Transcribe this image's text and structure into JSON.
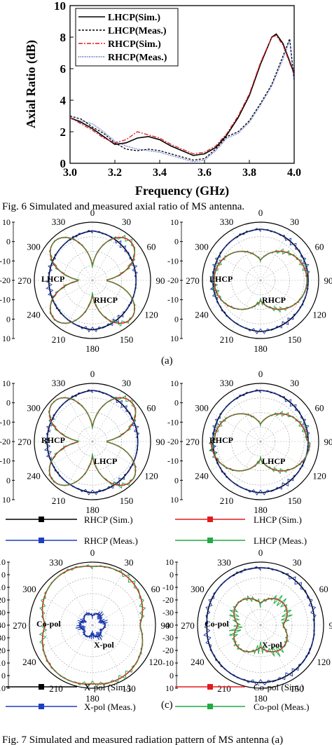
{
  "chart_data": [
    {
      "type": "line",
      "xlabel": "Frequency (GHz)",
      "ylabel": "Axial Ratio (dB)",
      "xlim": [
        3.0,
        4.0
      ],
      "ylim": [
        0,
        10
      ],
      "xticks": [
        "3.0",
        "3.2",
        "3.4",
        "3.6",
        "3.8",
        "4.0"
      ],
      "yticks": [
        "0",
        "2",
        "4",
        "6",
        "8",
        "10"
      ],
      "legend_position": "top-left",
      "series": [
        {
          "name": "LHCP(Sim.)",
          "color": "#000000",
          "dash": "solid",
          "x": [
            3.0,
            3.05,
            3.1,
            3.15,
            3.2,
            3.25,
            3.3,
            3.35,
            3.4,
            3.45,
            3.5,
            3.55,
            3.6,
            3.65,
            3.7,
            3.75,
            3.8,
            3.85,
            3.9,
            3.92,
            3.95,
            4.0
          ],
          "y": [
            2.9,
            2.6,
            2.2,
            1.7,
            1.2,
            1.3,
            1.6,
            1.7,
            1.5,
            1.1,
            0.8,
            0.5,
            0.6,
            1.0,
            1.8,
            2.9,
            4.3,
            6.3,
            8.0,
            8.2,
            7.6,
            5.7
          ]
        },
        {
          "name": "LHCP(Meas.)",
          "color": "#000000",
          "dash": "3,2",
          "x": [
            3.0,
            3.05,
            3.1,
            3.15,
            3.2,
            3.25,
            3.3,
            3.35,
            3.4,
            3.45,
            3.5,
            3.55,
            3.6,
            3.65,
            3.7,
            3.75,
            3.8,
            3.85,
            3.9,
            3.95,
            3.98,
            4.0
          ],
          "y": [
            3.0,
            2.8,
            2.3,
            1.9,
            1.3,
            0.9,
            0.8,
            0.9,
            0.8,
            0.6,
            0.4,
            0.2,
            0.3,
            0.9,
            1.7,
            2.0,
            2.7,
            3.8,
            5.0,
            6.8,
            7.9,
            5.3
          ]
        },
        {
          "name": "RHCP(Sim.)",
          "color": "#e31a1c",
          "dash": "6,2,2,2",
          "x": [
            3.0,
            3.05,
            3.1,
            3.15,
            3.2,
            3.25,
            3.3,
            3.35,
            3.4,
            3.45,
            3.5,
            3.55,
            3.6,
            3.65,
            3.7,
            3.75,
            3.8,
            3.85,
            3.9,
            3.92,
            3.95,
            4.0
          ],
          "y": [
            2.9,
            2.5,
            2.1,
            1.6,
            1.3,
            1.5,
            2.0,
            1.8,
            1.6,
            1.2,
            0.9,
            0.6,
            0.7,
            1.1,
            1.9,
            3.0,
            4.4,
            6.4,
            8.0,
            8.1,
            7.5,
            5.6
          ]
        },
        {
          "name": "RHCP(Meas.)",
          "color": "#1f3fbf",
          "dash": "1,1.5",
          "x": [
            3.0,
            3.05,
            3.1,
            3.15,
            3.2,
            3.25,
            3.3,
            3.35,
            3.4,
            3.45,
            3.5,
            3.55,
            3.6,
            3.65,
            3.7,
            3.75,
            3.8,
            3.85,
            3.9,
            3.95,
            3.98,
            4.0
          ],
          "y": [
            2.8,
            2.7,
            2.5,
            2.0,
            1.4,
            1.1,
            0.9,
            0.8,
            0.7,
            0.5,
            0.3,
            0.1,
            0.2,
            0.8,
            1.6,
            1.9,
            2.6,
            3.7,
            4.9,
            6.6,
            7.8,
            5.1
          ]
        }
      ],
      "legend": [
        "LHCP(Sim.)",
        "LHCP(Meas.)",
        "RHCP(Sim.)",
        "RHCP(Meas.)"
      ]
    },
    {
      "type": "polar",
      "radial_ticks": [
        "10",
        "0",
        "-10",
        "-20"
      ],
      "angle_ticks": [
        "0",
        "30",
        "60",
        "90",
        "120",
        "150",
        "180",
        "210",
        "240",
        "270",
        "300",
        "330"
      ],
      "r_range": [
        -20,
        10
      ]
    }
  ],
  "caption6": "Fig. 6 Simulated and measured axial ratio of MS antenna.",
  "caption7": "Fig. 7 Simulated and measured radiation pattern of MS antenna (a)",
  "sub_a": "(a)",
  "sub_c": "(c)",
  "polar_left_ticks": {
    "p1": [
      "10",
      "0",
      "-10",
      "-20",
      "-10",
      "0",
      "10"
    ],
    "p3": [
      "10",
      "0",
      "-10",
      "-20",
      "-10",
      "0",
      "10"
    ],
    "p5": [
      "10",
      "0",
      "-10",
      "-20",
      "-30",
      "-40",
      "-30",
      "-20",
      "-10",
      "0",
      "10"
    ]
  },
  "annotations": {
    "p1": [
      "LHCP",
      "RHCP"
    ],
    "p2": [
      "LHCP",
      "RHCP"
    ],
    "p3": [
      "RHCP",
      "LHCP"
    ],
    "p4": [
      "RHCP",
      "LHCP"
    ],
    "p5": [
      "Co-pol",
      "X-pol"
    ],
    "p6": [
      "Co-pol",
      "X-pol"
    ]
  },
  "legend_row1": {
    "left": "RHCP (Sim.)",
    "right": "LHCP (Sim.)"
  },
  "legend_row2": {
    "left": "RHCP (Meas.)",
    "right": "LHCP (Meas.)"
  },
  "legend_row3": {
    "left": "X-pol (Sim.)",
    "right": "Co-pol (Sim.)"
  },
  "legend_row4": {
    "left": "X-pol (Meas.)",
    "right": "Co-pol (Meas.)"
  },
  "colors": {
    "black": "#000000",
    "red": "#e31a1c",
    "blue": "#1f3fbf",
    "green": "#22aa44"
  }
}
